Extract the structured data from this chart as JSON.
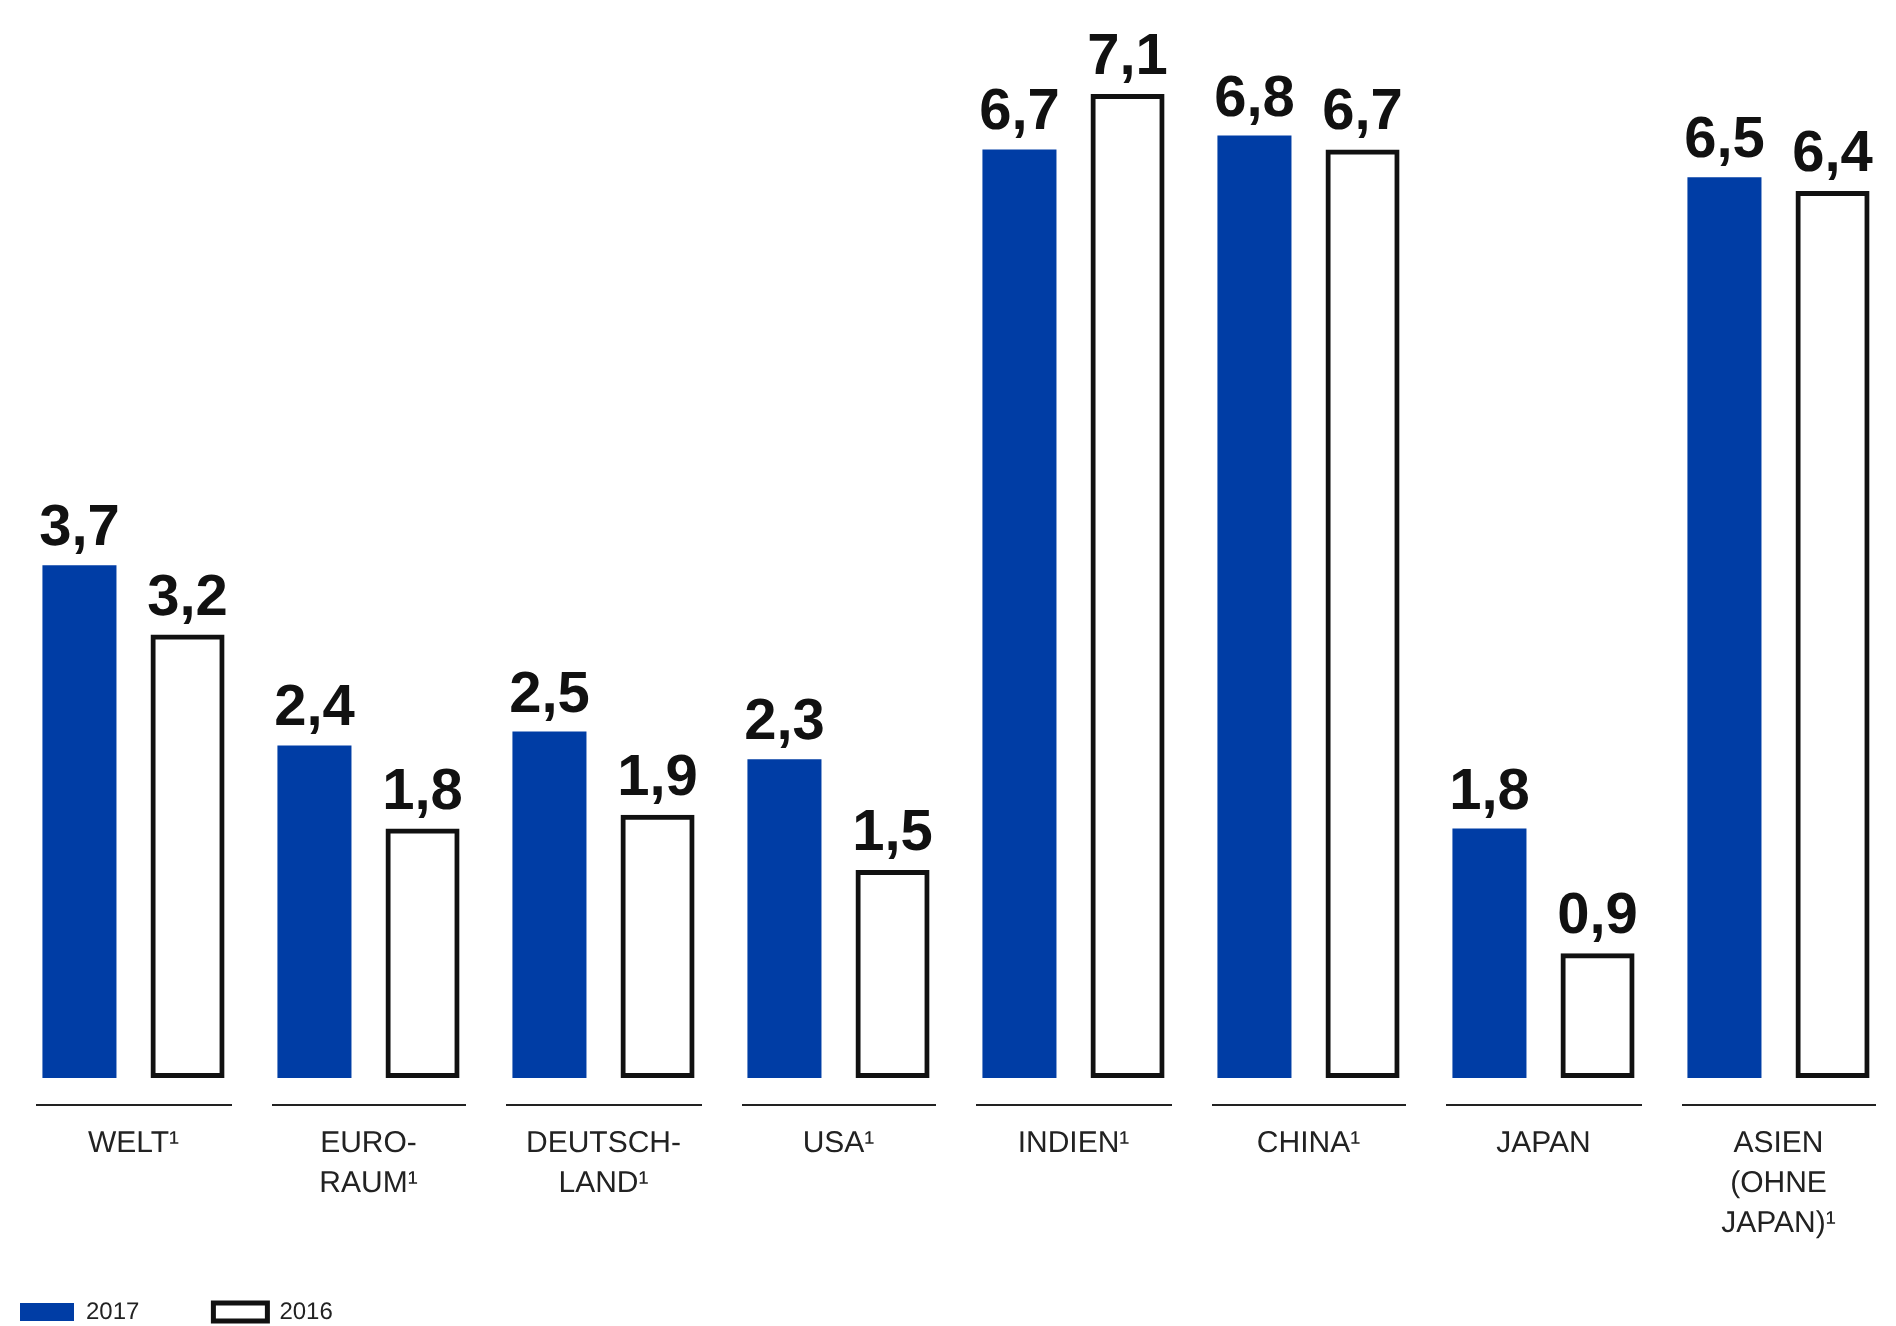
{
  "chart_data": {
    "type": "bar",
    "categories": [
      "WELT¹",
      "EURO-RAUM¹",
      "DEUTSCH-LAND¹",
      "USA¹",
      "INDIEN¹",
      "CHINA¹",
      "JAPAN",
      "ASIEN (OHNE JAPAN)¹"
    ],
    "series": [
      {
        "name": "2017",
        "color": "#003da5",
        "values": [
          3.7,
          2.4,
          2.5,
          2.3,
          6.7,
          6.8,
          1.8,
          6.5
        ],
        "value_labels": [
          "3,7",
          "2,4",
          "2,5",
          "2,3",
          "6,7",
          "6,8",
          "1,8",
          "6,5"
        ]
      },
      {
        "name": "2016",
        "color": "#111111",
        "values": [
          3.2,
          1.8,
          1.9,
          1.5,
          7.1,
          6.7,
          0.9,
          6.4
        ],
        "value_labels": [
          "3,2",
          "1,8",
          "1,9",
          "1,5",
          "7,1",
          "6,7",
          "0,9",
          "6,4"
        ]
      }
    ],
    "legend": "bottom left",
    "tick_labels": "x"
  }
}
